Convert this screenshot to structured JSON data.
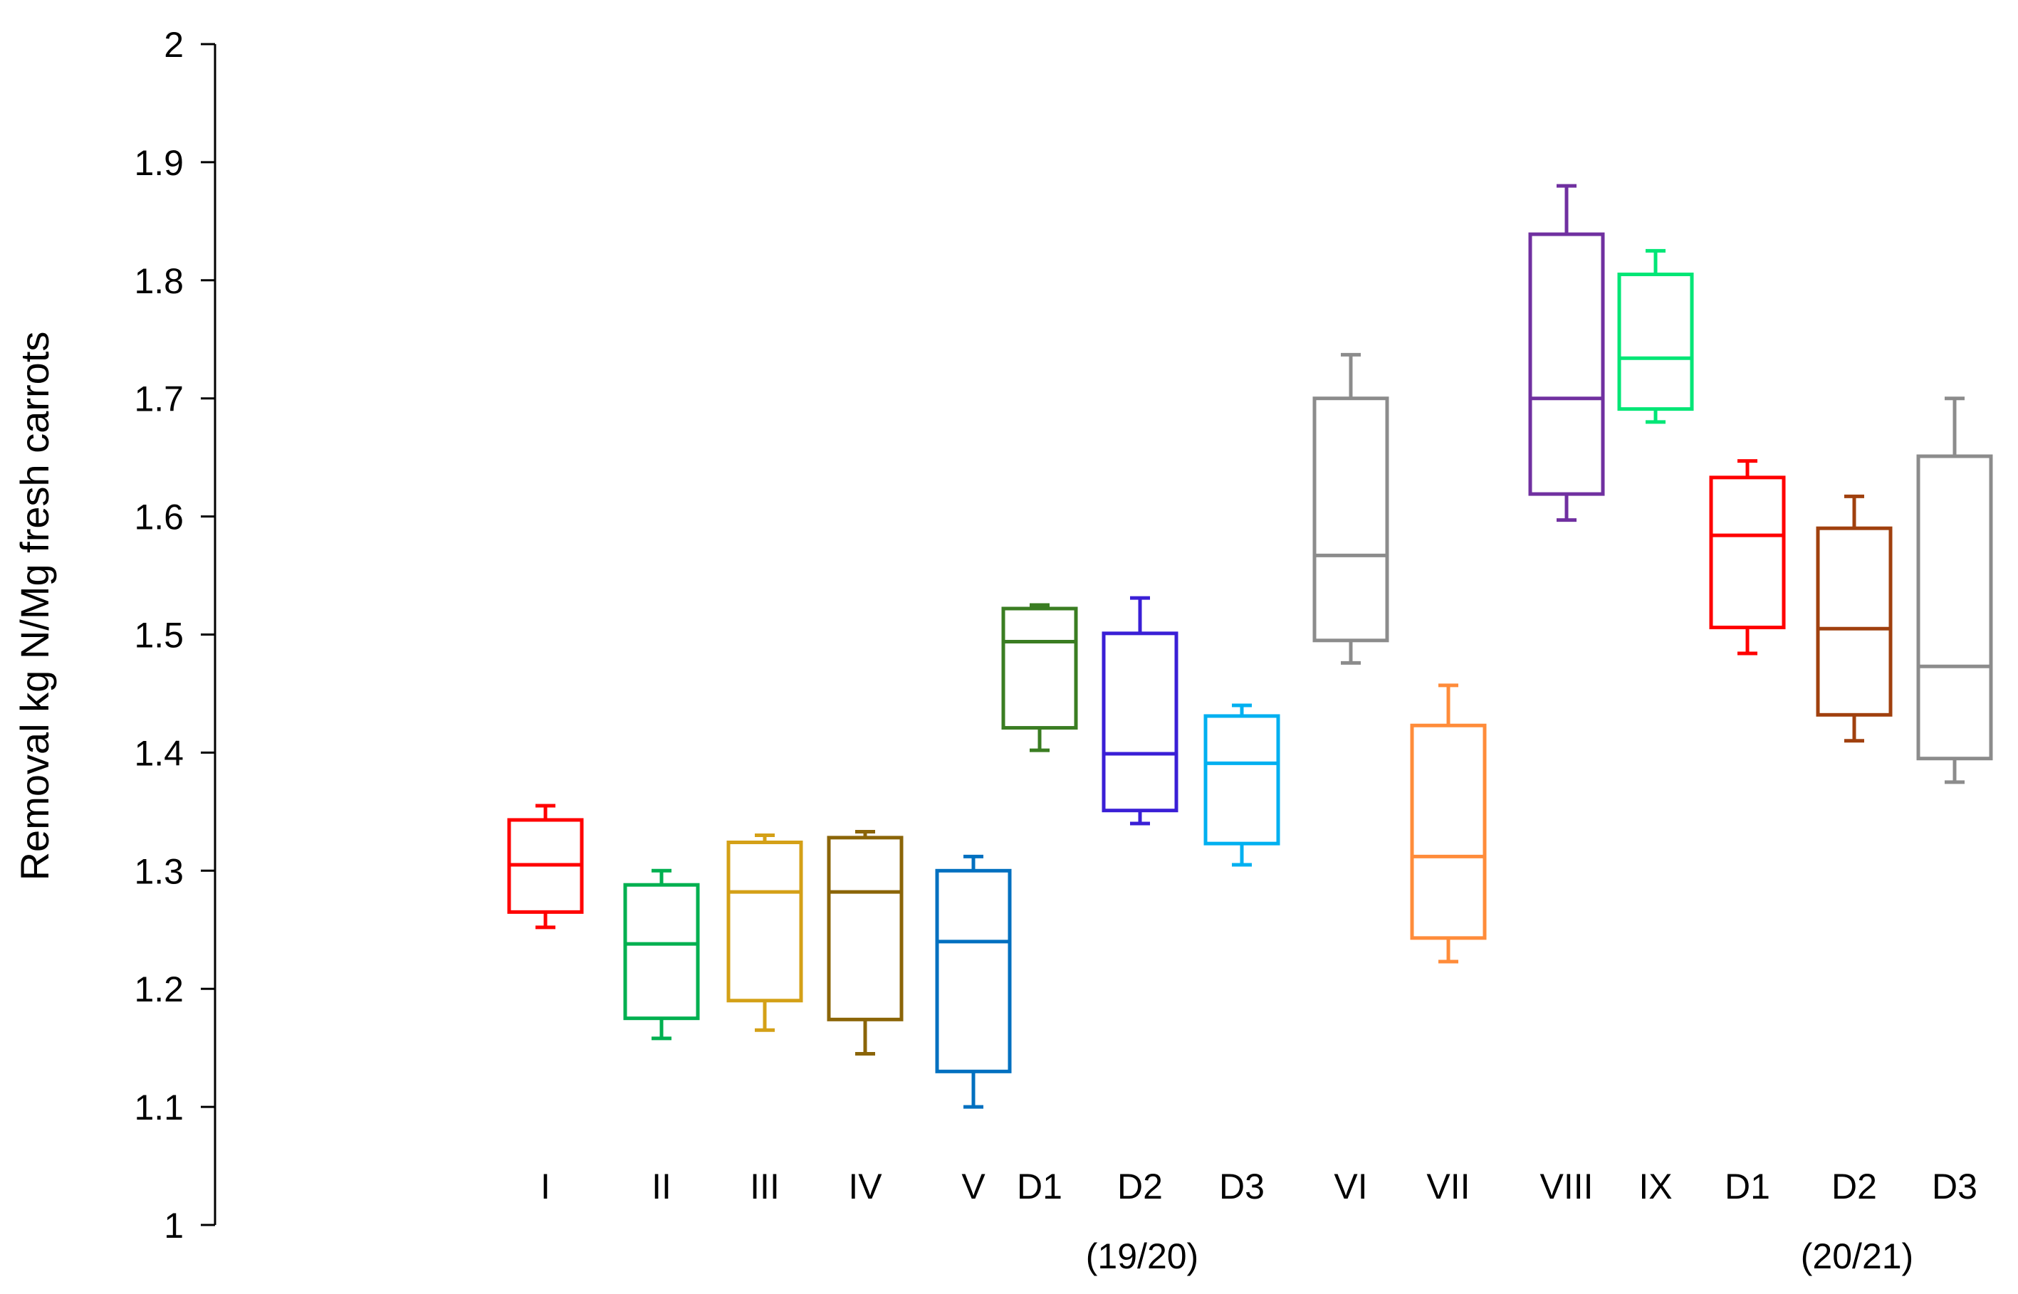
{
  "chart_data": {
    "type": "boxplot",
    "title": "",
    "xlabel": "",
    "ylabel": "Removal kg N/Mg fresh carrots",
    "ylim": [
      1,
      2
    ],
    "yticks": [
      "1",
      "1.1",
      "1.2",
      "1.3",
      "1.4",
      "1.5",
      "1.6",
      "1.7",
      "1.8",
      "1.9",
      "2"
    ],
    "grid": false,
    "legend": "none",
    "categories": [
      "I",
      "II",
      "III",
      "IV",
      "V",
      "D1",
      "D2",
      "D3",
      "VI",
      "VII",
      "VIII",
      "IX",
      "D1",
      "D2",
      "D3"
    ],
    "season_labels": [
      "(19/20)",
      "(20/21)"
    ],
    "boxes": [
      {
        "label": "I",
        "color": "#ff0000",
        "min": 1.252,
        "q1": 1.265,
        "median": 1.305,
        "q3": 1.343,
        "max": 1.355
      },
      {
        "label": "II",
        "color": "#00b050",
        "min": 1.158,
        "q1": 1.175,
        "median": 1.238,
        "q3": 1.288,
        "max": 1.3
      },
      {
        "label": "III",
        "color": "#d4a017",
        "min": 1.165,
        "q1": 1.19,
        "median": 1.282,
        "q3": 1.324,
        "max": 1.33
      },
      {
        "label": "IV",
        "color": "#8b6508",
        "min": 1.145,
        "q1": 1.174,
        "median": 1.282,
        "q3": 1.328,
        "max": 1.333
      },
      {
        "label": "V",
        "color": "#0070c0",
        "min": 1.1,
        "q1": 1.13,
        "median": 1.24,
        "q3": 1.3,
        "max": 1.312
      },
      {
        "label": "D1",
        "color": "#3a7d22",
        "min": 1.402,
        "q1": 1.421,
        "median": 1.494,
        "q3": 1.522,
        "max": 1.525
      },
      {
        "label": "D2",
        "color": "#3a1fd6",
        "min": 1.34,
        "q1": 1.351,
        "median": 1.399,
        "q3": 1.501,
        "max": 1.531
      },
      {
        "label": "D3",
        "color": "#00b0f0",
        "min": 1.305,
        "q1": 1.323,
        "median": 1.391,
        "q3": 1.431,
        "max": 1.44
      },
      {
        "label": "VI",
        "color": "#8c8c8c",
        "min": 1.476,
        "q1": 1.495,
        "median": 1.567,
        "q3": 1.7,
        "max": 1.737
      },
      {
        "label": "VII",
        "color": "#ff8c3a",
        "min": 1.223,
        "q1": 1.243,
        "median": 1.312,
        "q3": 1.423,
        "max": 1.457
      },
      {
        "label": "VIII",
        "color": "#7030a0",
        "min": 1.597,
        "q1": 1.619,
        "median": 1.7,
        "q3": 1.839,
        "max": 1.88
      },
      {
        "label": "IX",
        "color": "#00e676",
        "min": 1.68,
        "q1": 1.691,
        "median": 1.734,
        "q3": 1.805,
        "max": 1.825
      },
      {
        "label": "D1",
        "color": "#ff0000",
        "min": 1.484,
        "q1": 1.506,
        "median": 1.584,
        "q3": 1.633,
        "max": 1.647
      },
      {
        "label": "D2",
        "color": "#a0400e",
        "min": 1.41,
        "q1": 1.432,
        "median": 1.505,
        "q3": 1.59,
        "max": 1.617
      },
      {
        "label": "D3",
        "color": "#8c8c8c",
        "min": 1.375,
        "q1": 1.395,
        "median": 1.473,
        "q3": 1.651,
        "max": 1.7
      }
    ]
  }
}
